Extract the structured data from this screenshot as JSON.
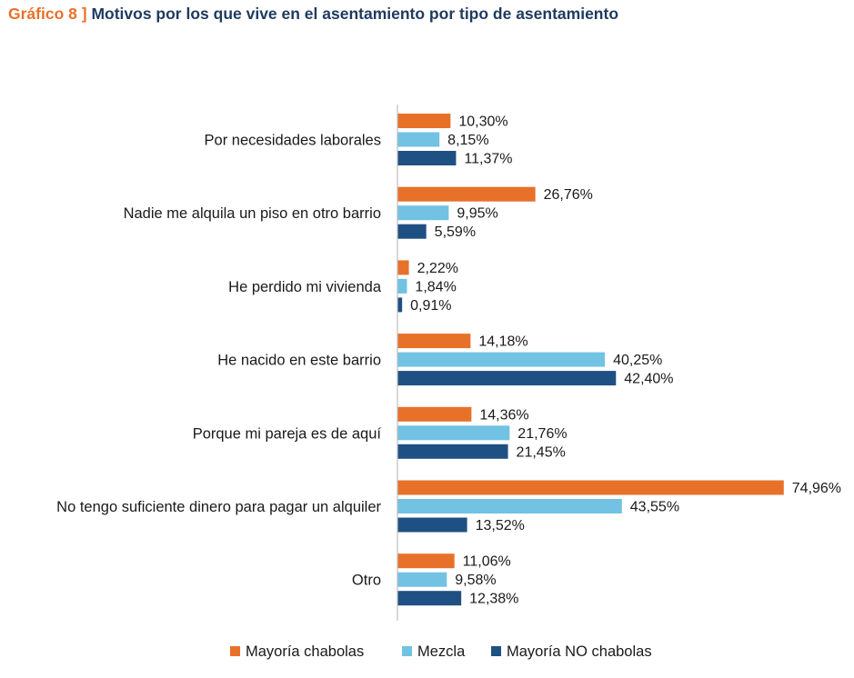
{
  "title": {
    "number": "Gráfico 8",
    "separator": "]",
    "text": "Motivos por los que vive en el asentamiento por tipo de asentamiento"
  },
  "chart_data": {
    "type": "bar",
    "orientation": "horizontal",
    "title": "Motivos por los que vive en el asentamiento por tipo de asentamiento",
    "categories": [
      "Por necesidades laborales",
      "Nadie me alquila un piso en otro barrio",
      "He perdido mi vivienda",
      "He nacido en este barrio",
      "Porque mi pareja es de aquí",
      "No tengo suficiente dinero para pagar un alquiler",
      "Otro"
    ],
    "series": [
      {
        "name": "Mayoría chabolas",
        "color": "#e8712a",
        "values": [
          10.3,
          26.76,
          2.22,
          14.18,
          14.36,
          74.96,
          11.06
        ],
        "labels": [
          "10,30%",
          "26,76%",
          "2,22%",
          "14,18%",
          "14,36%",
          "74,96%",
          "11,06%"
        ]
      },
      {
        "name": "Mezcla",
        "color": "#71c2e3",
        "values": [
          8.15,
          9.95,
          1.84,
          40.25,
          21.76,
          43.55,
          9.58
        ],
        "labels": [
          "8,15%",
          "9,95%",
          "1,84%",
          "40,25%",
          "21,76%",
          "43,55%",
          "9,58%"
        ]
      },
      {
        "name": "Mayoría NO chabolas",
        "color": "#1f5083",
        "values": [
          11.37,
          5.59,
          0.91,
          42.4,
          21.45,
          13.52,
          12.38
        ],
        "labels": [
          "11,37%",
          "5,59%",
          "0,91%",
          "42,40%",
          "21,45%",
          "13,52%",
          "12,38%"
        ]
      }
    ],
    "xlim": [
      0,
      75
    ],
    "legend": "bottom",
    "grid": false
  }
}
